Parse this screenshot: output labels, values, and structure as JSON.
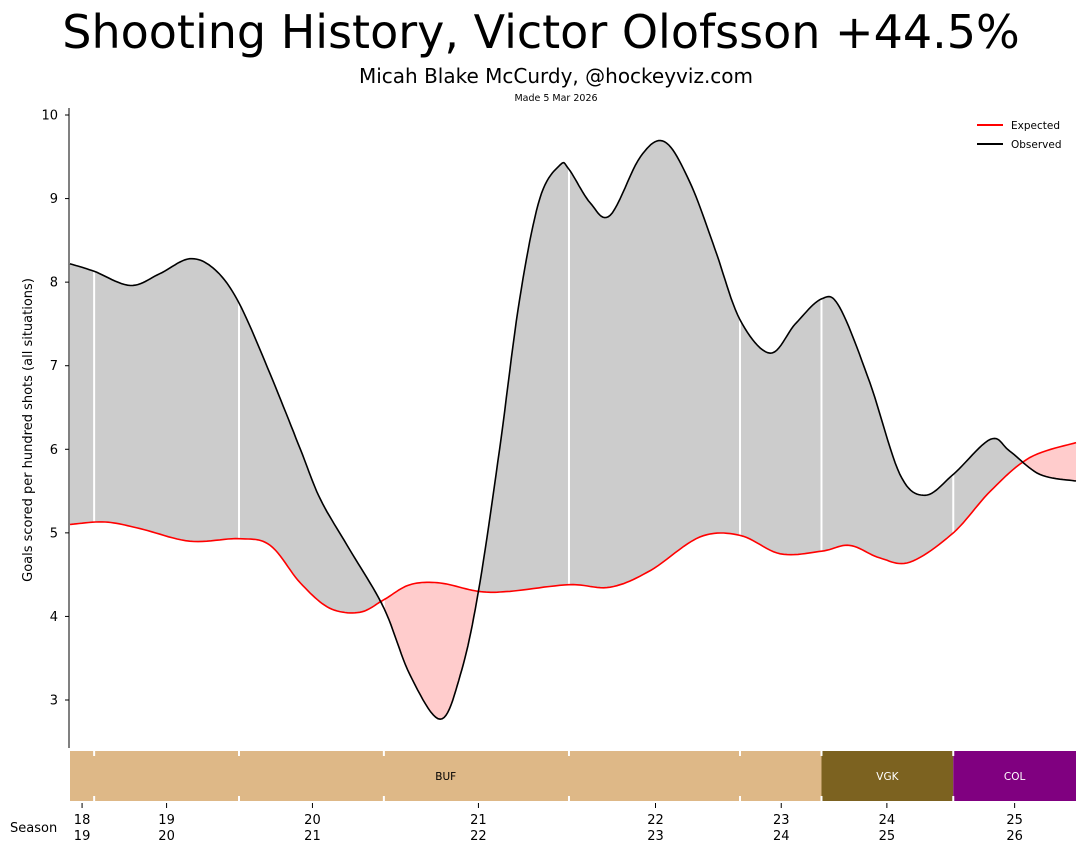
{
  "title": "Shooting History, Victor Olofsson +44.5%",
  "subtitle": "Micah Blake McCurdy, @hockeyviz.com",
  "made_note": "Made 5 Mar 2026",
  "chart_data": {
    "type": "line",
    "ylabel": "Goals scored per hundred shots (all situations)",
    "xlabel": "Season",
    "xlim": [
      0,
      100
    ],
    "x_units": "career progress (%)",
    "ylim": [
      2.4,
      10.05
    ],
    "yticks": [
      3,
      4,
      5,
      6,
      7,
      8,
      9,
      10
    ],
    "legend": {
      "placement": "top-right",
      "entries": [
        "Expected",
        "Observed"
      ]
    },
    "colors": {
      "expected": "#ff0000",
      "observed": "#000000",
      "above_fill": "#cccccc",
      "below_fill": "#ffcccc"
    },
    "series": [
      {
        "name": "Expected",
        "x": [
          0,
          3.5,
          7.0,
          11.9,
          16.8,
          19.9,
          22.9,
          25.8,
          28.8,
          31.2,
          33.8,
          36.8,
          40.6,
          43.7,
          49.6,
          53.7,
          57.7,
          62.6,
          66.6,
          70.6,
          74.7,
          77.5,
          80.5,
          83.5,
          87.8,
          91.5,
          95.4,
          100
        ],
        "y": [
          5.1,
          5.13,
          5.05,
          4.9,
          4.93,
          4.85,
          4.4,
          4.1,
          4.05,
          4.2,
          4.38,
          4.4,
          4.3,
          4.3,
          4.38,
          4.35,
          4.55,
          4.95,
          4.97,
          4.75,
          4.78,
          4.85,
          4.7,
          4.65,
          5.0,
          5.5,
          5.9,
          6.08
        ]
      },
      {
        "name": "Observed",
        "x": [
          0,
          2.4,
          6.0,
          8.9,
          11.9,
          14.4,
          16.8,
          19.9,
          22.9,
          24.9,
          27.8,
          31.2,
          33.8,
          36.8,
          38.8,
          40.6,
          42.7,
          44.7,
          46.7,
          48.7,
          49.6,
          51.7,
          53.7,
          56.7,
          59.1,
          61.6,
          64.1,
          66.6,
          69.6,
          72.1,
          74.7,
          76.5,
          79.5,
          82.5,
          85.0,
          87.8,
          91.5,
          93.4,
          96.4,
          100
        ],
        "y": [
          8.22,
          8.13,
          7.96,
          8.1,
          8.28,
          8.15,
          7.75,
          6.9,
          6.0,
          5.4,
          4.8,
          4.1,
          3.3,
          2.77,
          3.3,
          4.3,
          6.0,
          7.8,
          9.0,
          9.4,
          9.35,
          8.95,
          8.8,
          9.5,
          9.68,
          9.2,
          8.4,
          7.55,
          7.15,
          7.5,
          7.8,
          7.7,
          6.8,
          5.7,
          5.45,
          5.7,
          6.12,
          5.98,
          5.7,
          5.62
        ]
      }
    ],
    "season_boundaries": [
      2.4,
      16.8,
      31.2,
      49.6,
      66.6,
      74.7,
      87.8
    ],
    "seasons": [
      {
        "top": "18",
        "bottom": "19",
        "x": 1.2
      },
      {
        "top": "19",
        "bottom": "20",
        "x": 9.6
      },
      {
        "top": "20",
        "bottom": "21",
        "x": 24.1
      },
      {
        "top": "21",
        "bottom": "22",
        "x": 40.6
      },
      {
        "top": "22",
        "bottom": "23",
        "x": 58.2
      },
      {
        "top": "23",
        "bottom": "24",
        "x": 70.7
      },
      {
        "top": "24",
        "bottom": "25",
        "x": 81.2
      },
      {
        "top": "25",
        "bottom": "26",
        "x": 93.9
      }
    ],
    "teams": [
      {
        "name": "BUF",
        "start": 0,
        "end": 74.7,
        "color": "#deb887",
        "text_color": "#000000"
      },
      {
        "name": "VGK",
        "start": 74.7,
        "end": 87.8,
        "color": "#7c6220",
        "text_color": "#ffffff"
      },
      {
        "name": "COL",
        "start": 87.8,
        "end": 100,
        "color": "#800080",
        "text_color": "#ffffff"
      }
    ]
  }
}
